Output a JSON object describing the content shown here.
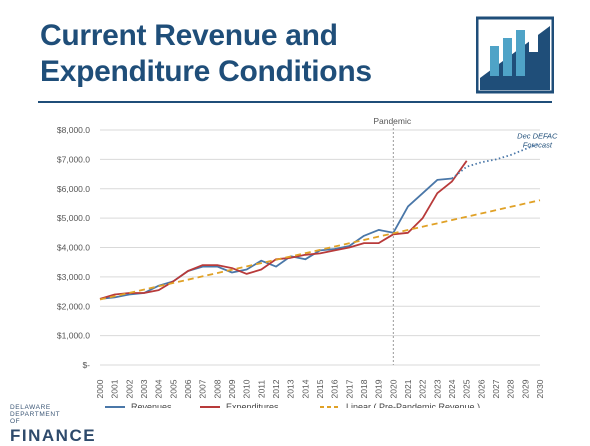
{
  "slide": {
    "title": "Current Revenue and Expenditure Conditions"
  },
  "logo": {
    "icon": "bar-chart-logo-icon",
    "colors": [
      "#1f4e79",
      "#4fa3c7"
    ]
  },
  "brand": {
    "line1": "DELAWARE",
    "line2": "DEPARTMENT OF",
    "name": "FINANCE"
  },
  "chart_data": {
    "type": "line",
    "title": "",
    "xlabel": "",
    "ylabel": "",
    "ylim": [
      0,
      8000
    ],
    "yticks": [
      0,
      1000,
      2000,
      3000,
      4000,
      5000,
      6000,
      7000,
      8000
    ],
    "ytick_labels": [
      "$-",
      "$1,000.0",
      "$2,000.0",
      "$3,000.0",
      "$4,000.0",
      "$5,000.0",
      "$6,000.0",
      "$7,000.0",
      "$8,000.0"
    ],
    "x_categories": [
      "2000",
      "2001",
      "2002",
      "2003",
      "2004",
      "2005",
      "2006",
      "2007",
      "2008",
      "2009",
      "2010",
      "2011",
      "2012",
      "2013",
      "2014",
      "2015",
      "2016",
      "2017",
      "2018",
      "2019",
      "2020",
      "2021",
      "2022",
      "2023",
      "2024",
      "2025",
      "2026",
      "2027",
      "2028",
      "2029",
      "2030"
    ],
    "grid": true,
    "legend_position": "bottom",
    "series": [
      {
        "name": "Revenues",
        "color": "#4a77a8",
        "dash": "solid",
        "x": [
          "2000",
          "2001",
          "2002",
          "2003",
          "2004",
          "2005",
          "2006",
          "2007",
          "2008",
          "2009",
          "2010",
          "2011",
          "2012",
          "2013",
          "2014",
          "2015",
          "2016",
          "2017",
          "2018",
          "2019",
          "2020",
          "2021",
          "2022",
          "2023",
          "2024"
        ],
        "values": [
          2250,
          2300,
          2400,
          2450,
          2700,
          2850,
          3200,
          3350,
          3350,
          3150,
          3250,
          3550,
          3350,
          3700,
          3600,
          3900,
          3950,
          4050,
          4400,
          4600,
          4500,
          5400,
          5850,
          6300,
          6350
        ]
      },
      {
        "name": "Expenditures",
        "color": "#b83a3a",
        "dash": "solid",
        "x": [
          "2000",
          "2001",
          "2002",
          "2003",
          "2004",
          "2005",
          "2006",
          "2007",
          "2008",
          "2009",
          "2010",
          "2011",
          "2012",
          "2013",
          "2014",
          "2015",
          "2016",
          "2017",
          "2018",
          "2019",
          "2020",
          "2021",
          "2022",
          "2023",
          "2024",
          "2025"
        ],
        "values": [
          2250,
          2400,
          2450,
          2450,
          2550,
          2850,
          3200,
          3400,
          3400,
          3300,
          3100,
          3250,
          3600,
          3650,
          3750,
          3800,
          3900,
          4000,
          4150,
          4150,
          4450,
          4500,
          5000,
          5850,
          6250,
          6950
        ]
      },
      {
        "name": "Linear ( Pre-Pandemic Revenue )",
        "color": "#e0a126",
        "dash": "dashed",
        "x": [
          "2000",
          "2030"
        ],
        "values": [
          2230,
          5610
        ]
      },
      {
        "name": "",
        "color": "#4a77a8",
        "dash": "dotted",
        "legend": false,
        "x": [
          "2024",
          "2025",
          "2026",
          "2027",
          "2028",
          "2029",
          "2030"
        ],
        "values": [
          6350,
          6750,
          6900,
          7000,
          7150,
          7350,
          7550
        ]
      }
    ],
    "annotations": [
      {
        "text": "Pandemic",
        "at_x": "2020",
        "type": "vertical-line",
        "color": "#999999"
      },
      {
        "text": "Dec DEFAC Forecast",
        "at_x": "2029",
        "at_y": 7850,
        "color": "#1f4e79",
        "italic": true
      }
    ]
  }
}
